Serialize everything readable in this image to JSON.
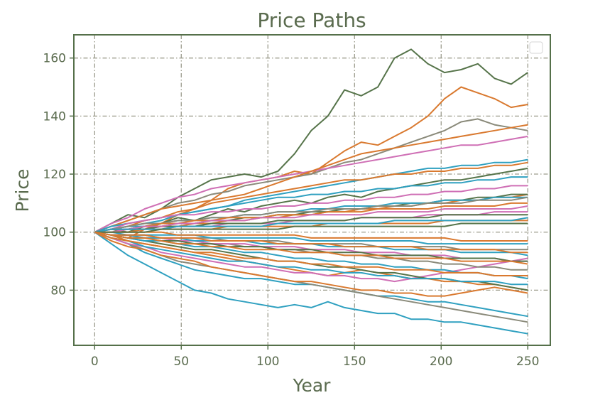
{
  "chart_data": {
    "type": "line",
    "title": "Price Paths",
    "xlabel": "Year",
    "ylabel": "Price",
    "xlim": [
      -12,
      263
    ],
    "ylim": [
      61,
      168
    ],
    "xticks": [
      0,
      50,
      100,
      150,
      200,
      250
    ],
    "yticks": [
      80,
      100,
      120,
      140,
      160
    ],
    "grid": true,
    "legend": "top-right (empty)",
    "colors": {
      "text": "#5a6b4e",
      "axes": "#55704a",
      "grid": "#9c9c8c",
      "series_palette": [
        "#56744a",
        "#d9792f",
        "#2fa0c0",
        "#cf6fb5",
        "#8a8a7a"
      ]
    },
    "series": [
      {
        "color": "#56744a",
        "values": [
          100,
          103,
          106,
          105,
          108,
          112,
          115,
          118,
          119,
          120,
          119,
          121,
          127,
          135,
          140,
          149,
          147,
          150,
          160,
          163,
          158,
          155,
          156,
          158,
          153,
          151,
          155
        ]
      },
      {
        "color": "#d9792f",
        "values": [
          100,
          99,
          98,
          101,
          103,
          106,
          108,
          111,
          115,
          117,
          118,
          119,
          121,
          120,
          124,
          128,
          131,
          130,
          133,
          136,
          140,
          146,
          150,
          148,
          146,
          143,
          144
        ]
      },
      {
        "color": "#2fa0c0",
        "values": [
          100,
          96,
          92,
          89,
          86,
          83,
          80,
          79,
          77,
          76,
          75,
          74,
          75,
          74,
          76,
          74,
          73,
          72,
          72,
          70,
          70,
          69,
          69,
          68,
          67,
          66,
          65
        ]
      },
      {
        "color": "#2fa0c0",
        "values": [
          100,
          98,
          96,
          93,
          91,
          89,
          87,
          86,
          85,
          84,
          84,
          83,
          82,
          82,
          81,
          80,
          79,
          78,
          78,
          77,
          76,
          76,
          75,
          74,
          73,
          72,
          71
        ]
      },
      {
        "color": "#8a8a7a",
        "values": [
          100,
          102,
          104,
          106,
          108,
          110,
          111,
          113,
          114,
          116,
          117,
          118,
          119,
          120,
          122,
          124,
          125,
          127,
          129,
          131,
          133,
          135,
          138,
          139,
          137,
          136,
          135
        ]
      },
      {
        "color": "#8a8a7a",
        "values": [
          100,
          98,
          96,
          94,
          92,
          90,
          89,
          88,
          87,
          86,
          85,
          84,
          83,
          82,
          81,
          80,
          79,
          78,
          77,
          76,
          75,
          74,
          73,
          72,
          71,
          70,
          69
        ]
      },
      {
        "color": "#cf6fb5",
        "values": [
          100,
          103,
          105,
          108,
          110,
          112,
          113,
          115,
          116,
          117,
          118,
          119,
          120,
          121,
          122,
          123,
          124,
          125,
          126,
          127,
          128,
          129,
          130,
          130,
          131,
          132,
          133
        ]
      },
      {
        "color": "#d9792f",
        "values": [
          100,
          102,
          104,
          106,
          108,
          109,
          110,
          111,
          112,
          113,
          115,
          117,
          119,
          121,
          123,
          125,
          127,
          128,
          129,
          130,
          131,
          132,
          133,
          134,
          135,
          136,
          137
        ]
      },
      {
        "color": "#2fa0c0",
        "values": [
          100,
          101,
          102,
          103,
          104,
          106,
          107,
          108,
          109,
          111,
          112,
          113,
          114,
          115,
          116,
          117,
          118,
          119,
          120,
          121,
          122,
          122,
          123,
          123,
          124,
          124,
          125
        ]
      },
      {
        "color": "#56744a",
        "values": [
          100,
          101,
          100,
          102,
          103,
          105,
          104,
          106,
          108,
          107,
          109,
          110,
          111,
          110,
          112,
          113,
          112,
          114,
          115,
          116,
          117,
          118,
          118,
          119,
          120,
          121,
          122
        ]
      },
      {
        "color": "#d9792f",
        "values": [
          100,
          97,
          95,
          94,
          92,
          91,
          90,
          88,
          87,
          86,
          85,
          84,
          83,
          83,
          82,
          81,
          80,
          80,
          79,
          79,
          78,
          78,
          79,
          80,
          81,
          80,
          79
        ]
      },
      {
        "color": "#d9792f",
        "values": [
          100,
          99,
          97,
          96,
          95,
          94,
          93,
          92,
          91,
          90,
          89,
          88,
          87,
          86,
          85,
          86,
          87,
          86,
          85,
          84,
          84,
          83,
          83,
          82,
          82,
          81,
          80
        ]
      },
      {
        "color": "#cf6fb5",
        "values": [
          100,
          98,
          96,
          95,
          93,
          92,
          91,
          90,
          89,
          88,
          88,
          87,
          86,
          86,
          85,
          85,
          84,
          84,
          83,
          84,
          85,
          86,
          87,
          88,
          89,
          90,
          91
        ]
      },
      {
        "color": "#2fa0c0",
        "values": [
          100,
          102,
          103,
          104,
          105,
          106,
          107,
          108,
          109,
          110,
          111,
          112,
          112,
          113,
          113,
          114,
          114,
          115,
          115,
          116,
          116,
          117,
          117,
          118,
          118,
          119,
          119
        ]
      },
      {
        "color": "#56744a",
        "values": [
          100,
          99,
          98,
          97,
          96,
          95,
          94,
          94,
          93,
          92,
          91,
          90,
          90,
          89,
          88,
          88,
          87,
          86,
          86,
          85,
          84,
          84,
          83,
          83,
          82,
          81,
          80
        ]
      },
      {
        "color": "#d9792f",
        "values": [
          100,
          101,
          102,
          104,
          105,
          107,
          108,
          110,
          111,
          112,
          113,
          114,
          115,
          116,
          117,
          118,
          118,
          119,
          120,
          120,
          121,
          121,
          122,
          122,
          123,
          123,
          124
        ]
      },
      {
        "color": "#2fa0c0",
        "values": [
          100,
          98,
          97,
          95,
          94,
          93,
          92,
          91,
          90,
          90,
          89,
          88,
          88,
          87,
          87,
          86,
          86,
          85,
          85,
          84,
          84,
          84,
          83,
          83,
          83,
          82,
          82
        ]
      },
      {
        "color": "#cf6fb5",
        "values": [
          100,
          101,
          103,
          104,
          105,
          106,
          106,
          107,
          107,
          108,
          108,
          109,
          109,
          110,
          110,
          111,
          111,
          112,
          112,
          113,
          113,
          114,
          114,
          115,
          115,
          116,
          116
        ]
      },
      {
        "color": "#8a8a7a",
        "values": [
          100,
          99,
          99,
          98,
          98,
          97,
          97,
          96,
          96,
          95,
          95,
          94,
          94,
          93,
          93,
          92,
          92,
          91,
          91,
          90,
          90,
          89,
          89,
          88,
          88,
          87,
          87
        ]
      },
      {
        "color": "#d9792f",
        "values": [
          100,
          100,
          101,
          101,
          102,
          102,
          103,
          103,
          104,
          104,
          105,
          105,
          106,
          106,
          107,
          107,
          108,
          108,
          109,
          109,
          110,
          110,
          111,
          111,
          112,
          112,
          113
        ]
      },
      {
        "color": "#2fa0c0",
        "values": [
          100,
          99,
          98,
          97,
          97,
          96,
          95,
          95,
          94,
          93,
          93,
          92,
          91,
          91,
          90,
          90,
          89,
          89,
          88,
          88,
          87,
          87,
          86,
          86,
          85,
          85,
          84
        ]
      },
      {
        "color": "#56744a",
        "values": [
          100,
          101,
          101,
          102,
          102,
          103,
          103,
          104,
          104,
          105,
          105,
          106,
          106,
          107,
          107,
          108,
          108,
          109,
          109,
          110,
          110,
          111,
          111,
          112,
          112,
          113,
          113
        ]
      },
      {
        "color": "#cf6fb5",
        "values": [
          100,
          99,
          99,
          98,
          98,
          97,
          97,
          96,
          96,
          96,
          95,
          95,
          95,
          94,
          94,
          94,
          93,
          93,
          93,
          92,
          92,
          92,
          91,
          91,
          91,
          90,
          90
        ]
      },
      {
        "color": "#d9792f",
        "values": [
          100,
          98,
          97,
          96,
          95,
          94,
          93,
          93,
          92,
          91,
          91,
          90,
          90,
          89,
          89,
          88,
          88,
          88,
          87,
          87,
          87,
          86,
          86,
          86,
          85,
          85,
          85
        ]
      },
      {
        "color": "#2fa0c0",
        "values": [
          100,
          101,
          102,
          102,
          103,
          104,
          104,
          105,
          105,
          106,
          106,
          107,
          107,
          108,
          108,
          109,
          109,
          109,
          110,
          110,
          110,
          111,
          111,
          111,
          112,
          112,
          112
        ]
      },
      {
        "color": "#8a8a7a",
        "values": [
          100,
          101,
          102,
          103,
          103,
          104,
          104,
          105,
          105,
          106,
          106,
          107,
          107,
          107,
          108,
          108,
          108,
          109,
          109,
          109,
          110,
          110,
          110,
          111,
          111,
          111,
          112
        ]
      },
      {
        "color": "#56744a",
        "values": [
          100,
          99,
          98,
          98,
          97,
          97,
          96,
          96,
          95,
          95,
          95,
          94,
          94,
          94,
          93,
          93,
          93,
          92,
          92,
          92,
          92,
          91,
          91,
          91,
          91,
          90,
          90
        ]
      },
      {
        "color": "#d9792f",
        "values": [
          100,
          101,
          101,
          102,
          103,
          103,
          104,
          104,
          105,
          105,
          105,
          106,
          106,
          106,
          107,
          107,
          107,
          108,
          108,
          108,
          108,
          109,
          109,
          109,
          109,
          110,
          110
        ]
      },
      {
        "color": "#cf6fb5",
        "values": [
          100,
          100,
          101,
          101,
          101,
          102,
          102,
          102,
          103,
          103,
          103,
          103,
          104,
          104,
          104,
          104,
          105,
          105,
          105,
          105,
          106,
          106,
          106,
          106,
          107,
          107,
          107
        ]
      },
      {
        "color": "#2fa0c0",
        "values": [
          100,
          99,
          99,
          98,
          98,
          98,
          97,
          97,
          97,
          97,
          96,
          96,
          96,
          96,
          95,
          95,
          95,
          95,
          94,
          94,
          94,
          94,
          93,
          93,
          93,
          93,
          92
        ]
      },
      {
        "color": "#d9792f",
        "values": [
          100,
          99,
          98,
          98,
          97,
          96,
          96,
          95,
          95,
          94,
          94,
          94,
          93,
          93,
          93,
          92,
          92,
          92,
          91,
          91,
          91,
          91,
          90,
          90,
          90,
          90,
          89
        ]
      },
      {
        "color": "#56744a",
        "values": [
          100,
          101,
          101,
          101,
          102,
          102,
          102,
          103,
          103,
          103,
          103,
          104,
          104,
          104,
          104,
          104,
          105,
          105,
          105,
          105,
          105,
          106,
          106,
          106,
          106,
          106,
          106
        ]
      },
      {
        "color": "#8a8a7a",
        "values": [
          100,
          99,
          99,
          99,
          98,
          98,
          98,
          98,
          97,
          97,
          97,
          97,
          96,
          96,
          96,
          96,
          96,
          95,
          95,
          95,
          95,
          95,
          94,
          94,
          94,
          94,
          94
        ]
      },
      {
        "color": "#d9792f",
        "values": [
          100,
          100,
          100,
          101,
          101,
          101,
          101,
          101,
          102,
          102,
          102,
          102,
          102,
          102,
          103,
          103,
          103,
          103,
          103,
          103,
          103,
          104,
          104,
          104,
          104,
          104,
          104
        ]
      },
      {
        "color": "#2fa0c0",
        "values": [
          100,
          100,
          99,
          99,
          99,
          99,
          99,
          98,
          98,
          98,
          98,
          98,
          98,
          97,
          97,
          97,
          97,
          97,
          97,
          97,
          96,
          96,
          96,
          96,
          96,
          96,
          96
        ]
      },
      {
        "color": "#cf6fb5",
        "values": [
          100,
          101,
          101,
          102,
          102,
          103,
          103,
          104,
          104,
          104,
          105,
          105,
          105,
          106,
          106,
          106,
          106,
          107,
          107,
          107,
          107,
          108,
          108,
          108,
          108,
          108,
          109
        ]
      },
      {
        "color": "#d9792f",
        "values": [
          100,
          100,
          100,
          100,
          100,
          99,
          99,
          99,
          99,
          99,
          99,
          99,
          99,
          98,
          98,
          98,
          98,
          98,
          98,
          98,
          98,
          98,
          97,
          97,
          97,
          97,
          97
        ]
      },
      {
        "color": "#2fa0c0",
        "values": [
          100,
          101,
          101,
          101,
          101,
          102,
          102,
          102,
          102,
          102,
          102,
          103,
          103,
          103,
          103,
          103,
          103,
          103,
          104,
          104,
          104,
          104,
          104,
          104,
          104,
          104,
          105
        ]
      },
      {
        "color": "#56744a",
        "values": [
          100,
          100,
          100,
          100,
          101,
          101,
          101,
          101,
          101,
          101,
          101,
          101,
          102,
          102,
          102,
          102,
          102,
          102,
          102,
          102,
          102,
          102,
          103,
          103,
          103,
          103,
          103
        ]
      },
      {
        "color": "#d9792f",
        "values": [
          100,
          99,
          99,
          99,
          98,
          98,
          98,
          97,
          97,
          97,
          97,
          96,
          96,
          96,
          96,
          95,
          95,
          95,
          95,
          95,
          94,
          94,
          94,
          94,
          94,
          93,
          93
        ]
      }
    ]
  }
}
